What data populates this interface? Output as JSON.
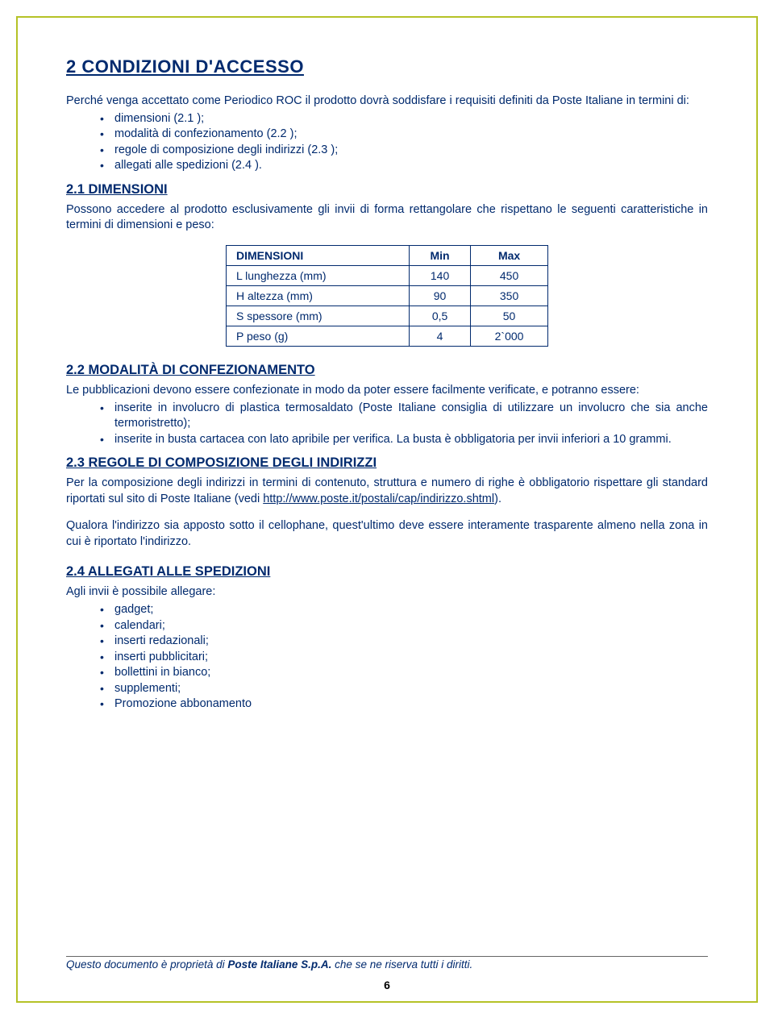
{
  "title": "2  CONDIZIONI D'ACCESSO",
  "intro": "Perché venga accettato come Periodico ROC il prodotto dovrà soddisfare i requisiti definiti da Poste Italiane in termini di:",
  "intro_items": [
    "dimensioni (2.1 );",
    "modalità di confezionamento (2.2 );",
    "regole di composizione degli indirizzi (2.3 );",
    "allegati alle spedizioni (2.4 )."
  ],
  "s1": {
    "head": "2.1  DIMENSIONI",
    "para": "Possono accedere al prodotto esclusivamente gli invii di forma rettangolare che rispettano le seguenti caratteristiche in termini di dimensioni e peso:"
  },
  "table": {
    "h0": "DIMENSIONI",
    "h1": "Min",
    "h2": "Max",
    "rows": [
      {
        "label": "L lunghezza (mm)",
        "min": "140",
        "max": "450"
      },
      {
        "label": "H altezza (mm)",
        "min": "90",
        "max": "350"
      },
      {
        "label": "S spessore (mm)",
        "min": "0,5",
        "max": "50"
      },
      {
        "label": "P peso (g)",
        "min": "4",
        "max": "2`000"
      }
    ]
  },
  "s2": {
    "head": "2.2  MODALITÀ DI CONFEZIONAMENTO",
    "para": "Le pubblicazioni devono essere confezionate in modo da poter essere facilmente verificate, e potranno essere:",
    "items": [
      "inserite in involucro di plastica termosaldato (Poste Italiane consiglia di utilizzare un involucro che sia anche termoristretto);",
      "inserite in busta cartacea con lato apribile per verifica. La busta è obbligatoria per invii inferiori a 10 grammi."
    ]
  },
  "s3": {
    "head": "2.3  REGOLE DI COMPOSIZIONE DEGLI INDIRIZZI",
    "p1a": "Per la composizione degli indirizzi in termini di contenuto, struttura e numero di righe è obbligatorio rispettare gli standard riportati sul sito di Poste Italiane (vedi ",
    "link": "http://www.poste.it/postali/cap/indirizzo.shtml",
    "p1b": ").",
    "p2": "Qualora l'indirizzo sia apposto sotto il cellophane, quest'ultimo deve essere interamente trasparente almeno nella zona in cui è riportato l'indirizzo."
  },
  "s4": {
    "head": "2.4  ALLEGATI ALLE SPEDIZIONI",
    "para": "Agli invii è possibile allegare:",
    "items": [
      "gadget;",
      "calendari;",
      "inserti redazionali;",
      "inserti pubblicitari;",
      "bollettini in bianco;",
      "supplementi;",
      "Promozione abbonamento"
    ]
  },
  "footer": {
    "a": "Questo documento è proprietà di ",
    "b": "Poste Italiane S.p.A.",
    "c": " che se ne riserva tutti i diritti."
  },
  "pagenum": "6"
}
